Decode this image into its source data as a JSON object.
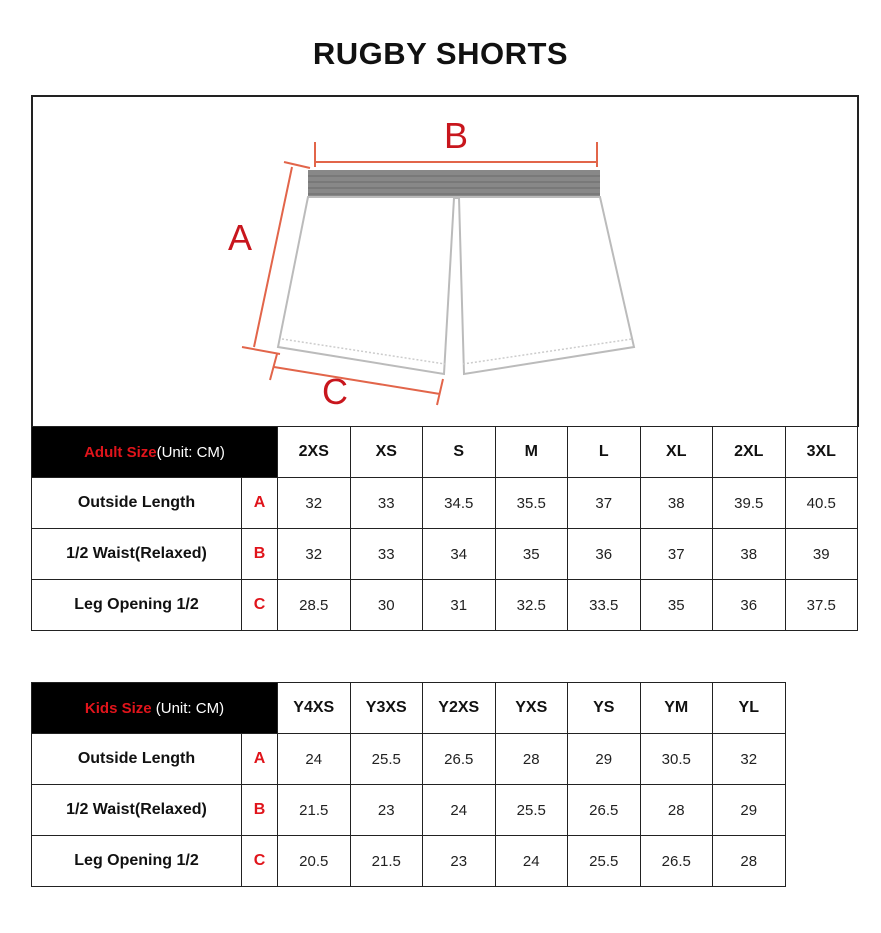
{
  "title": "RUGBY SHORTS",
  "diagram": {
    "labels": {
      "a": "A",
      "b": "B",
      "c": "C"
    },
    "accent": "#c8161d"
  },
  "adult": {
    "header_red": "Adult Size",
    "header_unit": "(Unit: CM)",
    "sizes": [
      "2XS",
      "XS",
      "S",
      "M",
      "L",
      "XL",
      "2XL",
      "3XL"
    ],
    "rows": [
      {
        "label": "Outside Length",
        "letter": "A",
        "values": [
          "32",
          "33",
          "34.5",
          "35.5",
          "37",
          "38",
          "39.5",
          "40.5"
        ]
      },
      {
        "label": "1/2 Waist(Relaxed)",
        "letter": "B",
        "values": [
          "32",
          "33",
          "34",
          "35",
          "36",
          "37",
          "38",
          "39"
        ]
      },
      {
        "label": "Leg Opening 1/2",
        "letter": "C",
        "values": [
          "28.5",
          "30",
          "31",
          "32.5",
          "33.5",
          "35",
          "36",
          "37.5"
        ]
      }
    ]
  },
  "kids": {
    "header_red": "Kids Size",
    "header_unit": " (Unit: CM)",
    "sizes": [
      "Y4XS",
      "Y3XS",
      "Y2XS",
      "YXS",
      "YS",
      "YM",
      "YL"
    ],
    "rows": [
      {
        "label": "Outside Length",
        "letter": "A",
        "values": [
          "24",
          "25.5",
          "26.5",
          "28",
          "29",
          "30.5",
          "32"
        ]
      },
      {
        "label": "1/2 Waist(Relaxed)",
        "letter": "B",
        "values": [
          "21.5",
          "23",
          "24",
          "25.5",
          "26.5",
          "28",
          "29"
        ]
      },
      {
        "label": "Leg Opening 1/2",
        "letter": "C",
        "values": [
          "20.5",
          "21.5",
          "23",
          "24",
          "25.5",
          "26.5",
          "28"
        ]
      }
    ]
  }
}
